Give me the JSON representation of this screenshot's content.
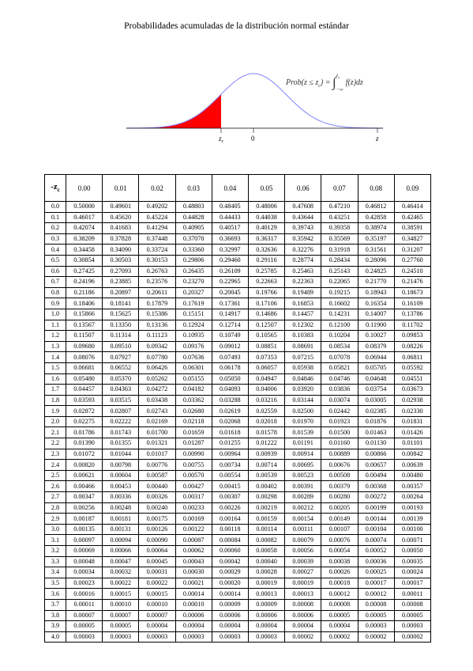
{
  "header": {
    "title": "Probabilidades acumuladas de la distribución normal estándar"
  },
  "figure": {
    "formula": {
      "lhs": "Prob(z ≤ z",
      "lhs_sub": "c",
      "rel": ") = ",
      "integral": "∫",
      "upper": "z",
      "upper_sub": "c",
      "lower": "−∞",
      "integrand": "f(z)dz"
    },
    "labels": {
      "zc": "z",
      "zc_sub": "c",
      "zero": "0",
      "z": "z"
    }
  },
  "table": {
    "corner": {
      "main": "-z",
      "sub": "c"
    },
    "columns": [
      "0.00",
      "0.01",
      "0.02",
      "0.03",
      "0.04",
      "0.05",
      "0.06",
      "0.07",
      "0.08",
      "0.09"
    ],
    "rows": [
      {
        "z": "0.0",
        "p": [
          "0.50000",
          "0.49601",
          "0.49202",
          "0.48803",
          "0.48405",
          "0.48006",
          "0.47608",
          "0.47210",
          "0.46812",
          "0.46414"
        ]
      },
      {
        "z": "0.1",
        "p": [
          "0.46017",
          "0.45620",
          "0.45224",
          "0.44828",
          "0.44433",
          "0.44038",
          "0.43644",
          "0.43251",
          "0.42858",
          "0.42465"
        ]
      },
      {
        "z": "0.2",
        "p": [
          "0.42074",
          "0.41683",
          "0.41294",
          "0.40905",
          "0.40517",
          "0.40129",
          "0.39743",
          "0.39358",
          "0.38974",
          "0.38591"
        ]
      },
      {
        "z": "0.3",
        "p": [
          "0.38209",
          "0.37828",
          "0.37448",
          "0.37070",
          "0.36693",
          "0.36317",
          "0.35942",
          "0.35569",
          "0.35197",
          "0.34827"
        ]
      },
      {
        "z": "0.4",
        "p": [
          "0.34458",
          "0.34090",
          "0.33724",
          "0.33360",
          "0.32997",
          "0.32636",
          "0.32276",
          "0.31918",
          "0.31561",
          "0.31207"
        ]
      },
      {
        "z": "0.5",
        "p": [
          "0.30854",
          "0.30503",
          "0.30153",
          "0.29806",
          "0.29460",
          "0.29116",
          "0.28774",
          "0.28434",
          "0.28096",
          "0.27760"
        ]
      },
      {
        "z": "0.6",
        "p": [
          "0.27425",
          "0.27093",
          "0.26763",
          "0.26435",
          "0.26109",
          "0.25785",
          "0.25463",
          "0.25143",
          "0.24825",
          "0.24510"
        ]
      },
      {
        "z": "0.7",
        "p": [
          "0.24196",
          "0.23885",
          "0.23576",
          "0.23270",
          "0.22965",
          "0.22663",
          "0.22363",
          "0.22065",
          "0.21770",
          "0.21476"
        ]
      },
      {
        "z": "0.8",
        "p": [
          "0.21186",
          "0.20897",
          "0.20611",
          "0.20327",
          "0.20045",
          "0.19766",
          "0.19489",
          "0.19215",
          "0.18943",
          "0.18673"
        ]
      },
      {
        "z": "0.9",
        "p": [
          "0.18406",
          "0.18141",
          "0.17879",
          "0.17619",
          "0.17361",
          "0.17106",
          "0.16853",
          "0.16602",
          "0.16354",
          "0.16109"
        ]
      },
      {
        "z": "1.0",
        "p": [
          "0.15866",
          "0.15625",
          "0.15386",
          "0.15151",
          "0.14917",
          "0.14686",
          "0.14457",
          "0.14231",
          "0.14007",
          "0.13786"
        ]
      },
      {
        "z": "1.1",
        "p": [
          "0.13567",
          "0.13350",
          "0.13136",
          "0.12924",
          "0.12714",
          "0.12507",
          "0.12302",
          "0.12100",
          "0.11900",
          "0.11702"
        ]
      },
      {
        "z": "1.2",
        "p": [
          "0.11507",
          "0.11314",
          "0.11123",
          "0.10935",
          "0.10749",
          "0.10565",
          "0.10383",
          "0.10204",
          "0.10027",
          "0.09853"
        ]
      },
      {
        "z": "1.3",
        "p": [
          "0.09680",
          "0.09510",
          "0.09342",
          "0.09176",
          "0.09012",
          "0.08851",
          "0.08691",
          "0.08534",
          "0.08379",
          "0.08226"
        ]
      },
      {
        "z": "1.4",
        "p": [
          "0.08076",
          "0.07927",
          "0.07780",
          "0.07636",
          "0.07493",
          "0.07353",
          "0.07215",
          "0.07078",
          "0.06944",
          "0.06811"
        ]
      },
      {
        "z": "1.5",
        "p": [
          "0.06681",
          "0.06552",
          "0.06426",
          "0.06301",
          "0.06178",
          "0.06057",
          "0.05938",
          "0.05821",
          "0.05705",
          "0.05592"
        ]
      },
      {
        "z": "1.6",
        "p": [
          "0.05480",
          "0.05370",
          "0.05262",
          "0.05155",
          "0.05050",
          "0.04947",
          "0.04846",
          "0.04746",
          "0.04648",
          "0.04551"
        ]
      },
      {
        "z": "1.7",
        "p": [
          "0.04457",
          "0.04363",
          "0.04272",
          "0.04182",
          "0.04093",
          "0.04006",
          "0.03920",
          "0.03836",
          "0.03754",
          "0.03673"
        ]
      },
      {
        "z": "1.8",
        "p": [
          "0.03593",
          "0.03515",
          "0.03438",
          "0.03362",
          "0.03288",
          "0.03216",
          "0.03144",
          "0.03074",
          "0.03005",
          "0.02938"
        ]
      },
      {
        "z": "1.9",
        "p": [
          "0.02872",
          "0.02807",
          "0.02743",
          "0.02680",
          "0.02619",
          "0.02559",
          "0.02500",
          "0.02442",
          "0.02385",
          "0.02330"
        ]
      },
      {
        "z": "2.0",
        "p": [
          "0.02275",
          "0.02222",
          "0.02169",
          "0.02118",
          "0.02068",
          "0.02018",
          "0.01970",
          "0.01923",
          "0.01876",
          "0.01831"
        ]
      },
      {
        "z": "2.1",
        "p": [
          "0.01786",
          "0.01743",
          "0.01700",
          "0.01659",
          "0.01618",
          "0.01578",
          "0.01539",
          "0.01500",
          "0.01463",
          "0.01426"
        ]
      },
      {
        "z": "2.2",
        "p": [
          "0.01390",
          "0.01355",
          "0.01321",
          "0.01287",
          "0.01255",
          "0.01222",
          "0.01191",
          "0.01160",
          "0.01130",
          "0.01101"
        ]
      },
      {
        "z": "2.3",
        "p": [
          "0.01072",
          "0.01044",
          "0.01017",
          "0.00990",
          "0.00964",
          "0.00939",
          "0.00914",
          "0.00889",
          "0.00866",
          "0.00842"
        ]
      },
      {
        "z": "2.4",
        "p": [
          "0.00820",
          "0.00798",
          "0.00776",
          "0.00755",
          "0.00734",
          "0.00714",
          "0.00695",
          "0.00676",
          "0.00657",
          "0.00639"
        ]
      },
      {
        "z": "2.5",
        "p": [
          "0.00621",
          "0.00604",
          "0.00587",
          "0.00570",
          "0.00554",
          "0.00539",
          "0.00523",
          "0.00508",
          "0.00494",
          "0.00480"
        ]
      },
      {
        "z": "2.6",
        "p": [
          "0.00466",
          "0.00453",
          "0.00440",
          "0.00427",
          "0.00415",
          "0.00402",
          "0.00391",
          "0.00379",
          "0.00368",
          "0.00357"
        ]
      },
      {
        "z": "2.7",
        "p": [
          "0.00347",
          "0.00336",
          "0.00326",
          "0.00317",
          "0.00307",
          "0.00298",
          "0.00289",
          "0.00280",
          "0.00272",
          "0.00264"
        ]
      },
      {
        "z": "2.8",
        "p": [
          "0.00256",
          "0.00248",
          "0.00240",
          "0.00233",
          "0.00226",
          "0.00219",
          "0.00212",
          "0.00205",
          "0.00199",
          "0.00193"
        ]
      },
      {
        "z": "2.9",
        "p": [
          "0.00187",
          "0.00181",
          "0.00175",
          "0.00169",
          "0.00164",
          "0.00159",
          "0.00154",
          "0.00149",
          "0.00144",
          "0.00139"
        ]
      },
      {
        "z": "3.0",
        "p": [
          "0.00135",
          "0.00131",
          "0.00126",
          "0.00122",
          "0.00118",
          "0.00114",
          "0.00111",
          "0.00107",
          "0.00104",
          "0.00100"
        ]
      },
      {
        "z": "3.1",
        "p": [
          "0.00097",
          "0.00094",
          "0.00090",
          "0.00087",
          "0.00084",
          "0.00082",
          "0.00079",
          "0.00076",
          "0.00074",
          "0.00071"
        ]
      },
      {
        "z": "3.2",
        "p": [
          "0.00069",
          "0.00066",
          "0.00064",
          "0.00062",
          "0.00060",
          "0.00058",
          "0.00056",
          "0.00054",
          "0.00052",
          "0.00050"
        ]
      },
      {
        "z": "3.3",
        "p": [
          "0.00048",
          "0.00047",
          "0.00045",
          "0.00043",
          "0.00042",
          "0.00040",
          "0.00039",
          "0.00038",
          "0.00036",
          "0.00035"
        ]
      },
      {
        "z": "3.4",
        "p": [
          "0.00034",
          "0.00032",
          "0.00031",
          "0.00030",
          "0.00029",
          "0.00028",
          "0.00027",
          "0.00026",
          "0.00025",
          "0.00024"
        ]
      },
      {
        "z": "3.5",
        "p": [
          "0.00023",
          "0.00022",
          "0.00022",
          "0.00021",
          "0.00020",
          "0.00019",
          "0.00019",
          "0.00018",
          "0.00017",
          "0.00017"
        ]
      },
      {
        "z": "3.6",
        "p": [
          "0.00016",
          "0.00015",
          "0.00015",
          "0.00014",
          "0.00014",
          "0.00013",
          "0.00013",
          "0.00012",
          "0.00012",
          "0.00011"
        ]
      },
      {
        "z": "3.7",
        "p": [
          "0.00011",
          "0.00010",
          "0.00010",
          "0.00010",
          "0.00009",
          "0.00009",
          "0.00008",
          "0.00008",
          "0.00008",
          "0.00008"
        ]
      },
      {
        "z": "3.8",
        "p": [
          "0.00007",
          "0.00007",
          "0.00007",
          "0.00006",
          "0.00006",
          "0.00006",
          "0.00006",
          "0.00005",
          "0.00005",
          "0.00005"
        ]
      },
      {
        "z": "3.9",
        "p": [
          "0.00005",
          "0.00005",
          "0.00004",
          "0.00004",
          "0.00004",
          "0.00004",
          "0.00004",
          "0.00004",
          "0.00003",
          "0.00003"
        ]
      },
      {
        "z": "4.0",
        "p": [
          "0.00003",
          "0.00003",
          "0.00003",
          "0.00003",
          "0.00003",
          "0.00003",
          "0.00002",
          "0.00002",
          "0.00002",
          "0.00002"
        ]
      }
    ]
  }
}
